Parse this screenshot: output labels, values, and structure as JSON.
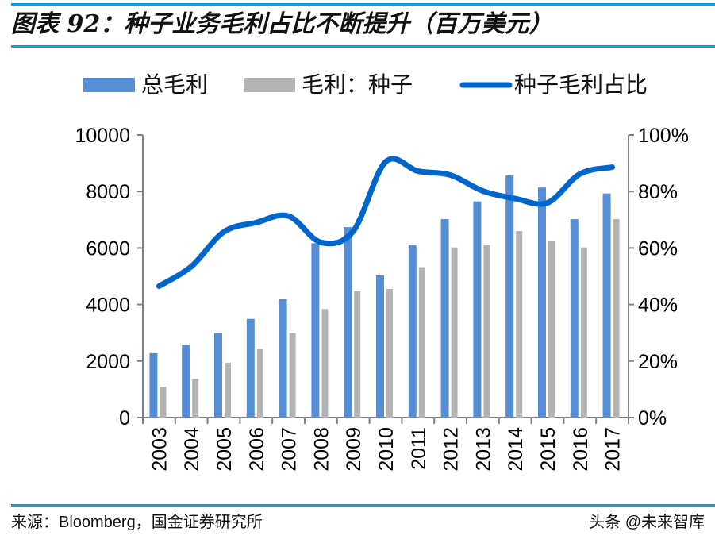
{
  "title": "图表 92：种子业务毛利占比不断提升（百万美元）",
  "source": "来源：Bloomberg，国金证券研究所",
  "watermark": "头条 @未来智库",
  "colors": {
    "rule": "#0aa0e6",
    "total": "#558ed5",
    "seed": "#b3b3b3",
    "ratio": "#0066cc"
  },
  "chart_data": {
    "type": "bar+line",
    "categories": [
      "2003",
      "2004",
      "2005",
      "2006",
      "2007",
      "2008",
      "2009",
      "2010",
      "2011",
      "2012",
      "2013",
      "2014",
      "2015",
      "2016",
      "2017"
    ],
    "series": [
      {
        "name": "总毛利",
        "type": "bar",
        "axis": "left",
        "values": [
          2280,
          2570,
          2990,
          3490,
          4190,
          6170,
          6740,
          5030,
          6100,
          7020,
          7650,
          8570,
          8140,
          7020,
          7930
        ]
      },
      {
        "name": "毛利：种子",
        "type": "bar",
        "axis": "left",
        "values": [
          1090,
          1370,
          1940,
          2430,
          2990,
          3840,
          4470,
          4550,
          5320,
          6020,
          6100,
          6600,
          6240,
          6020,
          7020
        ]
      },
      {
        "name": "种子毛利占比",
        "type": "line",
        "axis": "right",
        "values": [
          46.5,
          53.5,
          65.7,
          69.0,
          71.3,
          62.0,
          66.0,
          90.5,
          87.2,
          85.8,
          80.2,
          77.5,
          76.0,
          86.2,
          88.6
        ]
      }
    ],
    "left_axis": {
      "ylim": [
        0,
        10000
      ],
      "ticks": [
        "0",
        "2000",
        "4000",
        "6000",
        "8000",
        "10000"
      ]
    },
    "right_axis": {
      "ylim": [
        0,
        100
      ],
      "ticks": [
        "0%",
        "20%",
        "40%",
        "60%",
        "80%",
        "100%"
      ]
    },
    "legend": "top",
    "grid": false
  }
}
